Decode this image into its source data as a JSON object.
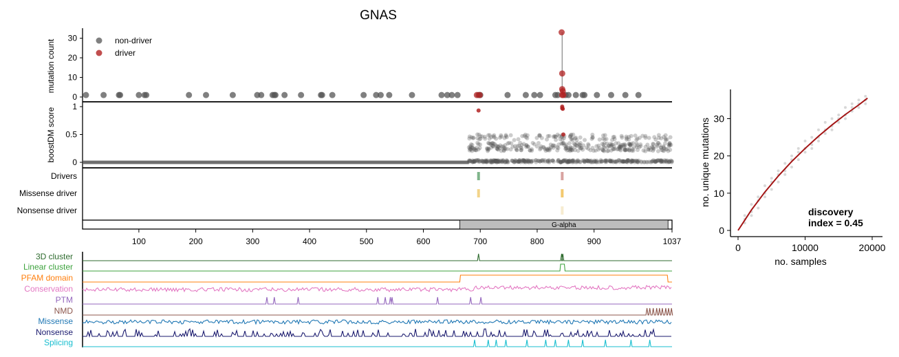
{
  "title": "GNAS",
  "chart_data": [
    {
      "type": "scatter",
      "title": "GNAS",
      "ylabel": "mutation count",
      "xlim": [
        1,
        1037
      ],
      "ylim": [
        0,
        33
      ],
      "yticks": [
        0,
        10,
        20,
        30
      ],
      "legend": {
        "placement": "top-left",
        "entries": [
          {
            "label": "non-driver",
            "color": "#555555"
          },
          {
            "label": "driver",
            "color": "#b22222"
          }
        ]
      },
      "series": [
        {
          "name": "non-driver",
          "color": "#555555",
          "x": [
            7,
            38,
            65,
            67,
            100,
            110,
            113,
            188,
            218,
            265,
            308,
            315,
            335,
            338,
            340,
            356,
            385,
            420,
            422,
            440,
            495,
            517,
            525,
            540,
            580,
            632,
            642,
            650,
            660,
            697,
            700,
            748,
            780,
            795,
            805,
            832,
            836,
            850,
            855,
            868,
            880,
            883,
            905,
            930,
            955,
            978
          ],
          "y": [
            1,
            1,
            1,
            1,
            1,
            1,
            1,
            1,
            1,
            1,
            1,
            1,
            1,
            1,
            1,
            1,
            1,
            1,
            1,
            1,
            1,
            1,
            1,
            1,
            1,
            1,
            1,
            1,
            1,
            1,
            1,
            1,
            1,
            1,
            1,
            1,
            1,
            1,
            1,
            1,
            1,
            1,
            1,
            1,
            1,
            1
          ]
        },
        {
          "name": "driver",
          "color": "#b22222",
          "x": [
            694,
            699,
            843,
            844,
            844,
            845,
            844,
            846
          ],
          "y": [
            1,
            1,
            33,
            12,
            4,
            3,
            1,
            1
          ]
        }
      ]
    },
    {
      "type": "scatter",
      "ylabel": "boostDM score",
      "xlim": [
        1,
        1037
      ],
      "ylim": [
        0,
        1
      ],
      "ytick_labels": [
        "0",
        "0.5",
        "1"
      ],
      "ytick_values": [
        0,
        0.5,
        1
      ],
      "baseline_score": 0,
      "cloud": {
        "x_start": 680,
        "x_end": 1037,
        "band_low": [
          0.2,
          0.35
        ],
        "band_high": [
          0.4,
          0.5
        ]
      },
      "driver_points": {
        "x": [
          697,
          844,
          844,
          845,
          846
        ],
        "y": [
          0.93,
          1.0,
          0.97,
          0.96,
          0.5
        ]
      }
    },
    {
      "type": "table",
      "rows": [
        {
          "label": "Drivers",
          "marks": [
            {
              "x": 697,
              "color": "#7fb48a"
            },
            {
              "x": 844,
              "color": "#d8a3a0"
            }
          ]
        },
        {
          "label": "Missense driver",
          "marks": [
            {
              "x": 697,
              "color": "#f3d48a"
            },
            {
              "x": 844,
              "color": "#f3c96f"
            }
          ]
        },
        {
          "label": "Nonsense driver",
          "marks": [
            {
              "x": 844,
              "color": "#f6ecd0"
            }
          ]
        }
      ]
    },
    {
      "type": "bar",
      "xlim": [
        1,
        1037
      ],
      "xticks": [
        100,
        200,
        300,
        400,
        500,
        600,
        700,
        800,
        900,
        1037
      ],
      "domains": [
        {
          "label": "G-alpha",
          "start": 664,
          "end": 1030
        }
      ]
    },
    {
      "type": "line",
      "xlim": [
        1,
        1037
      ],
      "tracks": [
        {
          "label": "3D cluster",
          "color": "#2d6a2d",
          "kind": "peaks",
          "peaks": [
            697,
            843,
            845
          ]
        },
        {
          "label": "Linear cluster",
          "color": "#3ca23c",
          "kind": "box",
          "start": 840,
          "end": 849
        },
        {
          "label": "PFAM domain",
          "color": "#ff7f0e",
          "kind": "box",
          "start": 664,
          "end": 1030
        },
        {
          "label": "Conservation",
          "color": "#e377c2",
          "kind": "noise",
          "step_at": 690
        },
        {
          "label": "PTM",
          "color": "#9467bd",
          "kind": "peaks",
          "peaks": [
            325,
            338,
            380,
            520,
            533,
            542,
            545,
            625,
            683,
            701
          ]
        },
        {
          "label": "NMD",
          "color": "#8c564b",
          "kind": "peaks",
          "peaks": [
            993,
            998,
            1004,
            1010,
            1015,
            1020,
            1026,
            1031,
            1036
          ]
        },
        {
          "label": "Missense",
          "color": "#1f77b4",
          "kind": "noise"
        },
        {
          "label": "Nonsense",
          "color": "#1a1a6e",
          "kind": "spikes"
        },
        {
          "label": "Splicing",
          "color": "#17becf",
          "kind": "peaks",
          "peaks": [
            690,
            714,
            728,
            745,
            782,
            815,
            832,
            855,
            880,
            920,
            965,
            998
          ]
        }
      ]
    },
    {
      "type": "scatter",
      "xlabel": "no. samples",
      "ylabel": "no. unique mutations",
      "xlim": [
        0,
        20000
      ],
      "ylim": [
        0,
        36
      ],
      "xticks": [
        0,
        10000,
        20000
      ],
      "yticks": [
        0,
        10,
        20,
        30
      ],
      "annotation": "discovery\nindex = 0.45",
      "fit_color": "#a31515",
      "fit_curve": {
        "x": [
          0,
          2000,
          4000,
          6000,
          8000,
          10000,
          12000,
          14000,
          16000,
          18000,
          19300
        ],
        "y": [
          0,
          5.5,
          10.3,
          14.6,
          18.5,
          22.0,
          25.3,
          28.3,
          31.1,
          33.7,
          35.5
        ]
      },
      "subsamples": [
        [
          1000,
          3
        ],
        [
          1000,
          2
        ],
        [
          1000,
          4
        ],
        [
          2000,
          5
        ],
        [
          2000,
          7
        ],
        [
          2000,
          4
        ],
        [
          3000,
          8
        ],
        [
          3000,
          6
        ],
        [
          3000,
          9
        ],
        [
          4000,
          10
        ],
        [
          4000,
          12
        ],
        [
          4000,
          9
        ],
        [
          5000,
          13
        ],
        [
          5000,
          11
        ],
        [
          5000,
          14
        ],
        [
          6000,
          15
        ],
        [
          6000,
          13
        ],
        [
          6000,
          16
        ],
        [
          7000,
          16
        ],
        [
          7000,
          18
        ],
        [
          7000,
          15
        ],
        [
          8000,
          19
        ],
        [
          8000,
          17
        ],
        [
          8000,
          20
        ],
        [
          9000,
          21
        ],
        [
          9000,
          19
        ],
        [
          9000,
          22
        ],
        [
          10000,
          22
        ],
        [
          10000,
          24
        ],
        [
          10000,
          21
        ],
        [
          11000,
          23
        ],
        [
          11000,
          25
        ],
        [
          11000,
          22
        ],
        [
          12000,
          25
        ],
        [
          12000,
          27
        ],
        [
          12000,
          24
        ],
        [
          13000,
          27
        ],
        [
          13000,
          29
        ],
        [
          13000,
          26
        ],
        [
          14000,
          28
        ],
        [
          14000,
          30
        ],
        [
          14000,
          27
        ],
        [
          15000,
          30
        ],
        [
          15000,
          31
        ],
        [
          15000,
          29
        ],
        [
          16000,
          31
        ],
        [
          16000,
          33
        ],
        [
          16000,
          30
        ],
        [
          17000,
          32
        ],
        [
          17000,
          34
        ],
        [
          17000,
          33
        ],
        [
          18000,
          33
        ],
        [
          18000,
          35
        ],
        [
          18000,
          34
        ],
        [
          19000,
          35
        ],
        [
          19000,
          36
        ],
        [
          19000,
          34
        ]
      ]
    }
  ]
}
